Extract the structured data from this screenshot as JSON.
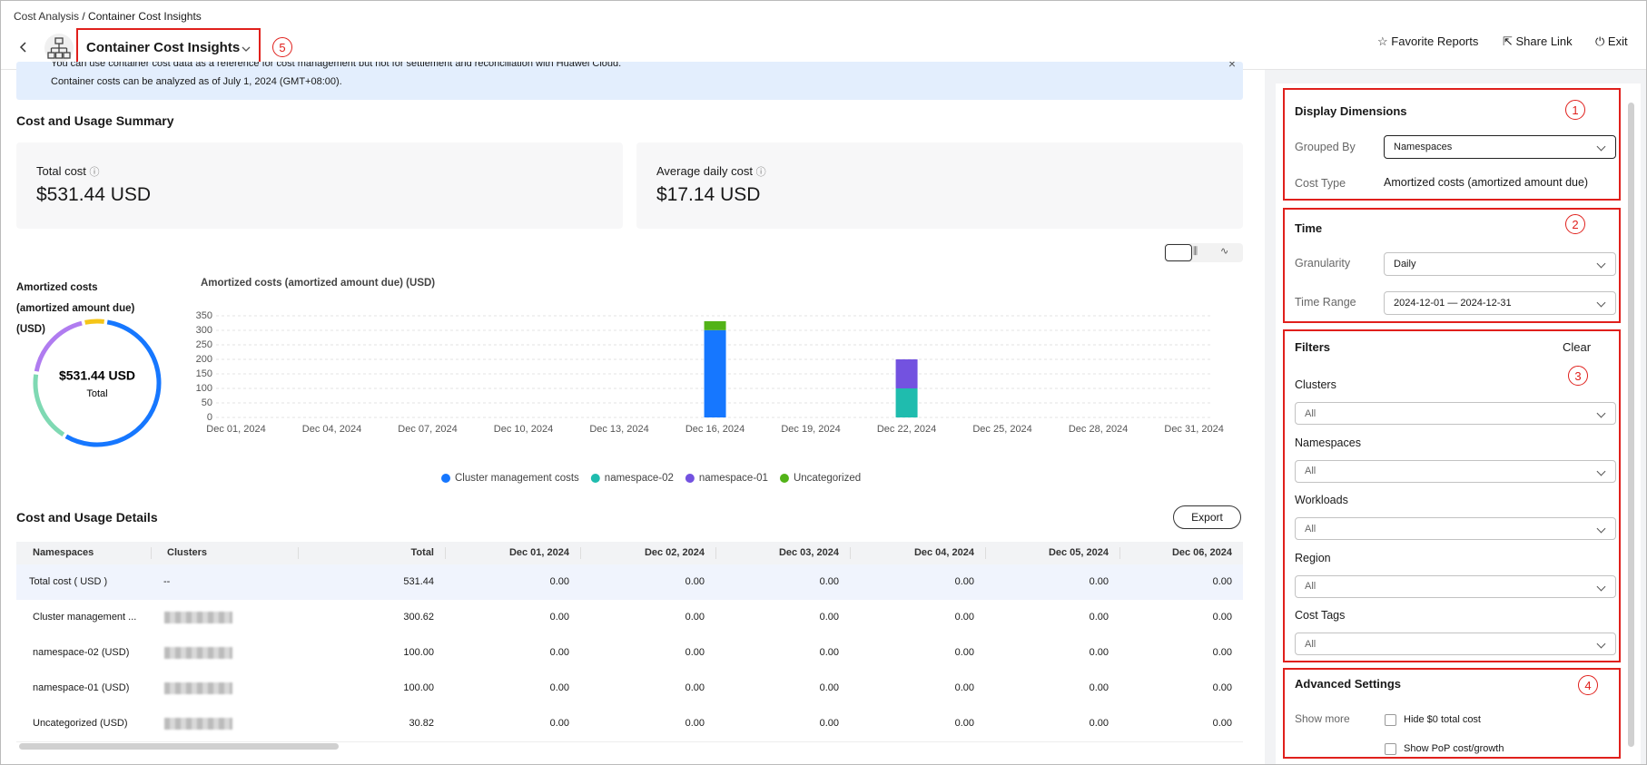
{
  "breadcrumb": {
    "parent": "Cost Analysis",
    "current": "Container Cost Insights"
  },
  "header": {
    "title": "Container Cost Insights",
    "callout": "5",
    "actions": {
      "favorite": "Favorite Reports",
      "share": "Share Link",
      "exit": "Exit"
    }
  },
  "notice": {
    "lines": [
      "You can use container cost data as a reference for cost management but not for settlement and reconciliation with Huawei Cloud.",
      "Container costs can be analyzed as of July 1, 2024 (GMT+08:00)."
    ]
  },
  "summary": {
    "title": "Cost and Usage Summary",
    "cards": [
      {
        "label": "Total cost",
        "value": "$531.44 USD"
      },
      {
        "label": "Average daily cost",
        "value": "$17.14 USD"
      }
    ]
  },
  "chart_data": [
    {
      "type": "pie",
      "title": "Amortized costs (amortized amount due) (USD)",
      "center_value": "$531.44 USD",
      "center_label": "Total",
      "values": [
        300.62,
        100,
        100,
        30.82
      ],
      "colors": [
        "#1677ff",
        "#7fd9b3",
        "#b07cf0",
        "#f5c518"
      ]
    },
    {
      "type": "bar",
      "stacked": true,
      "title": "Amortized costs (amortized amount due) (USD)",
      "categories": [
        "Dec 01, 2024",
        null,
        null,
        "Dec 04, 2024",
        null,
        null,
        "Dec 07, 2024",
        null,
        null,
        "Dec 10, 2024",
        null,
        null,
        "Dec 13, 2024",
        null,
        null,
        "Dec 16, 2024",
        null,
        null,
        "Dec 19, 2024",
        null,
        null,
        "Dec 22, 2024",
        null,
        null,
        "Dec 25, 2024",
        null,
        null,
        "Dec 28, 2024",
        null,
        null,
        "Dec 31, 2024"
      ],
      "series": [
        {
          "name": "Cluster management costs",
          "color": "#1677ff",
          "values": [
            0,
            0,
            0,
            0,
            0,
            0,
            0,
            0,
            0,
            0,
            0,
            0,
            0,
            0,
            0,
            300.62,
            0,
            0,
            0,
            0,
            0,
            0,
            0,
            0,
            0,
            0,
            0,
            0,
            0,
            0,
            0
          ]
        },
        {
          "name": "namespace-02",
          "color": "#1fbcae",
          "values": [
            0,
            0,
            0,
            0,
            0,
            0,
            0,
            0,
            0,
            0,
            0,
            0,
            0,
            0,
            0,
            0,
            0,
            0,
            0,
            0,
            0,
            100,
            0,
            0,
            0,
            0,
            0,
            0,
            0,
            0,
            0
          ]
        },
        {
          "name": "namespace-01",
          "color": "#7352e0",
          "values": [
            0,
            0,
            0,
            0,
            0,
            0,
            0,
            0,
            0,
            0,
            0,
            0,
            0,
            0,
            0,
            0,
            0,
            0,
            0,
            0,
            0,
            100,
            0,
            0,
            0,
            0,
            0,
            0,
            0,
            0,
            0
          ]
        },
        {
          "name": "Uncategorized",
          "color": "#52b318",
          "values": [
            0,
            0,
            0,
            0,
            0,
            0,
            0,
            0,
            0,
            0,
            0,
            0,
            0,
            0,
            0,
            30.82,
            0,
            0,
            0,
            0,
            0,
            0,
            0,
            0,
            0,
            0,
            0,
            0,
            0,
            0,
            0
          ]
        }
      ],
      "ylim": [
        0,
        350
      ],
      "yticks": [
        0,
        50,
        100,
        150,
        200,
        250,
        300,
        350
      ],
      "grid": true,
      "legend": "bottom"
    }
  ],
  "details": {
    "title": "Cost and Usage Details",
    "export": "Export",
    "table": {
      "columns": [
        "Namespaces",
        "Clusters",
        "Total",
        "Dec 01, 2024",
        "Dec 02, 2024",
        "Dec 03, 2024",
        "Dec 04, 2024",
        "Dec 05, 2024",
        "Dec 06, 2024"
      ],
      "rows": [
        [
          "Total cost ( USD )",
          "--",
          "531.44",
          "0.00",
          "0.00",
          "0.00",
          "0.00",
          "0.00",
          "0.00"
        ],
        [
          "Cluster management ...",
          null,
          "300.62",
          "0.00",
          "0.00",
          "0.00",
          "0.00",
          "0.00",
          "0.00"
        ],
        [
          "namespace-02 (USD)",
          null,
          "100.00",
          "0.00",
          "0.00",
          "0.00",
          "0.00",
          "0.00",
          "0.00"
        ],
        [
          "namespace-01 (USD)",
          null,
          "100.00",
          "0.00",
          "0.00",
          "0.00",
          "0.00",
          "0.00",
          "0.00"
        ],
        [
          "Uncategorized (USD)",
          null,
          "30.82",
          "0.00",
          "0.00",
          "0.00",
          "0.00",
          "0.00",
          "0.00"
        ]
      ]
    }
  },
  "panel": {
    "display": {
      "title": "Display Dimensions",
      "callout": "1",
      "grouped_by": {
        "label": "Grouped By",
        "value": "Namespaces"
      },
      "cost_type": {
        "label": "Cost Type",
        "value": "Amortized costs (amortized amount due)"
      }
    },
    "time": {
      "title": "Time",
      "callout": "2",
      "granularity": {
        "label": "Granularity",
        "value": "Daily"
      },
      "range": {
        "label": "Time Range",
        "value": "2024-12-01 — 2024-12-31"
      }
    },
    "filters": {
      "title": "Filters",
      "clear": "Clear",
      "callout": "3",
      "fields": [
        {
          "label": "Clusters",
          "value": "All"
        },
        {
          "label": "Namespaces",
          "value": "All"
        },
        {
          "label": "Workloads",
          "value": "All"
        },
        {
          "label": "Region",
          "value": "All"
        },
        {
          "label": "Cost Tags",
          "value": "All"
        }
      ]
    },
    "advanced": {
      "title": "Advanced Settings",
      "callout": "4",
      "label": "Show more",
      "options": [
        "Hide $0 total cost",
        "Show PoP cost/growth"
      ]
    }
  }
}
